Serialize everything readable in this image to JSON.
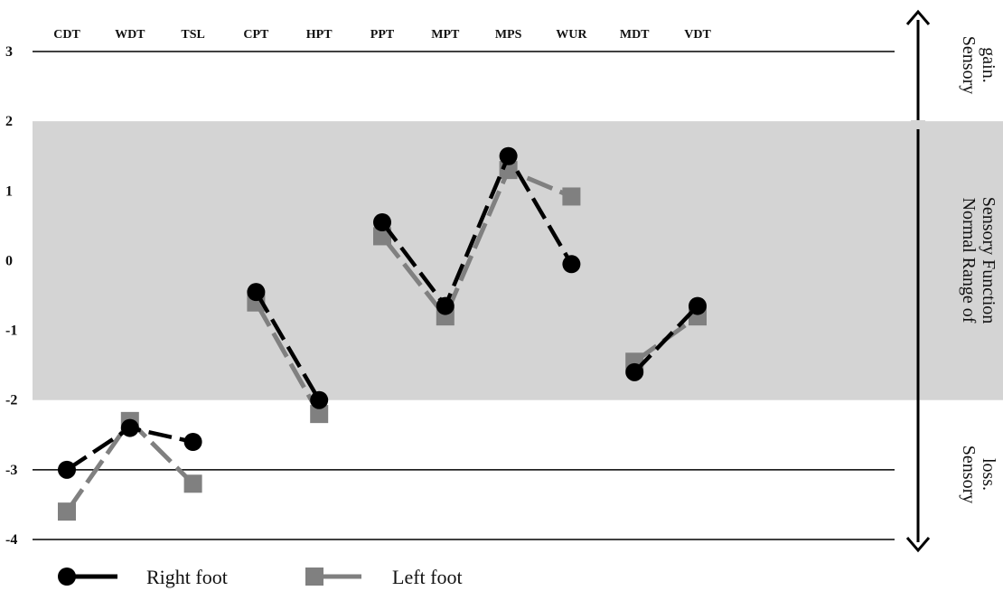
{
  "chart_data": {
    "type": "line",
    "categories": [
      "CDT",
      "WDT",
      "TSL",
      "CPT",
      "HPT",
      "PPT",
      "MPT",
      "MPS",
      "WUR",
      "MDT",
      "VDT"
    ],
    "y_ticks": [
      "3",
      "2",
      "1",
      "0",
      "-1",
      "-2",
      "-3",
      "-4"
    ],
    "ylim": [
      -4,
      3
    ],
    "normal_band": {
      "from": -2,
      "to": 2,
      "color": "#d4d4d4"
    },
    "gridlines_at": [
      3,
      -3,
      -4
    ],
    "side_labels": {
      "gain": [
        "Sensory",
        "gain."
      ],
      "normal": [
        "Normal Range of",
        "Sensory Function"
      ],
      "loss": [
        "Sensory",
        "loss."
      ]
    },
    "legend": {
      "position": "bottom-left"
    },
    "series": [
      {
        "name": "Right foot",
        "color": "#000000",
        "marker": "circle",
        "segments": [
          [
            [
              "CDT",
              -3.0
            ],
            [
              "WDT",
              -2.4
            ],
            [
              "TSL",
              -2.6
            ]
          ],
          [
            [
              "CPT",
              -0.45
            ],
            [
              "HPT",
              -2.0
            ]
          ],
          [
            [
              "PPT",
              0.55
            ],
            [
              "MPT",
              -0.65
            ],
            [
              "MPS",
              1.5
            ],
            [
              "WUR",
              -0.05
            ]
          ],
          [
            [
              "MDT",
              -1.6
            ],
            [
              "VDT",
              -0.65
            ]
          ]
        ]
      },
      {
        "name": "Left foot",
        "color": "#808080",
        "marker": "square",
        "segments": [
          [
            [
              "CDT",
              -3.6
            ],
            [
              "WDT",
              -2.3
            ],
            [
              "TSL",
              -3.2
            ]
          ],
          [
            [
              "CPT",
              -0.6
            ],
            [
              "HPT",
              -2.2
            ]
          ],
          [
            [
              "PPT",
              0.35
            ],
            [
              "MPT",
              -0.8
            ],
            [
              "MPS",
              1.3
            ],
            [
              "WUR",
              0.92
            ]
          ],
          [
            [
              "MDT",
              -1.45
            ],
            [
              "VDT",
              -0.8
            ]
          ]
        ]
      }
    ]
  }
}
